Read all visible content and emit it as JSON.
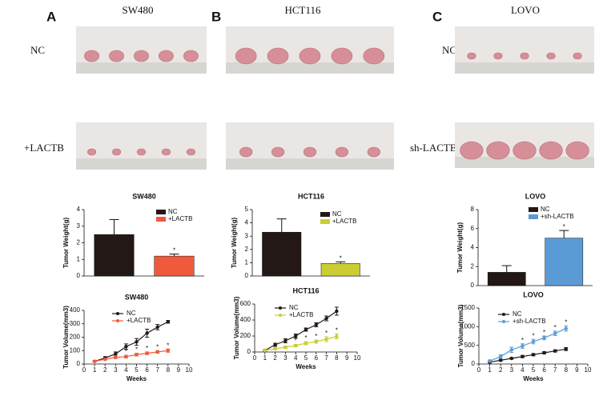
{
  "panels": [
    {
      "letter": "A",
      "title": "SW480",
      "rows": [
        "NC",
        "+LACTB"
      ]
    },
    {
      "letter": "B",
      "title": "HCT116"
    },
    {
      "letter": "C",
      "title": "LOVO",
      "rows": [
        "NC",
        "sh-LACTB"
      ]
    }
  ],
  "chart_data": [
    {
      "type": "bar",
      "title": "SW480",
      "ylabel": "Tumor Weight(g)",
      "ylim": [
        0,
        4
      ],
      "yticks": [
        0,
        1,
        2,
        3,
        4
      ],
      "annotation": "*",
      "series": [
        {
          "name": "NC",
          "color": "#231815",
          "values": [
            2.5
          ],
          "errors": [
            0.9
          ]
        },
        {
          "name": "+LACTB",
          "color": "#ef5a3c",
          "values": [
            1.2
          ],
          "errors": [
            0.12
          ]
        }
      ]
    },
    {
      "type": "bar",
      "title": "HCT116",
      "ylabel": "Tumor Weight(g)",
      "ylim": [
        0,
        5
      ],
      "yticks": [
        0,
        1,
        2,
        3,
        4,
        5
      ],
      "annotation": "*",
      "series": [
        {
          "name": "NC",
          "color": "#231815",
          "values": [
            3.3
          ],
          "errors": [
            1.0
          ]
        },
        {
          "name": "+LACTB",
          "color": "#cccc33",
          "values": [
            0.95
          ],
          "errors": [
            0.12
          ]
        }
      ]
    },
    {
      "type": "bar",
      "title": "LOVO",
      "ylabel": "Tumor Weight(g)",
      "ylim": [
        0,
        8
      ],
      "yticks": [
        0,
        2,
        4,
        6,
        8
      ],
      "annotation": "*",
      "series": [
        {
          "name": "NC",
          "color": "#231815",
          "values": [
            1.4
          ],
          "errors": [
            0.7
          ]
        },
        {
          "name": "+sh-LACTB",
          "color": "#5b9bd5",
          "values": [
            5.0
          ],
          "errors": [
            0.8
          ]
        }
      ]
    },
    {
      "type": "line",
      "title": "SW480",
      "ylabel": "Tumor Volume(mm3)",
      "xlabel": "Weeks",
      "annotation": "*",
      "xlim": [
        0,
        10
      ],
      "xticks": [
        0,
        1,
        2,
        3,
        4,
        5,
        6,
        7,
        8,
        9,
        10
      ],
      "ylim": [
        0,
        400
      ],
      "yticks": [
        0,
        100,
        200,
        300,
        400
      ],
      "x": [
        1,
        2,
        3,
        4,
        5,
        6,
        7,
        8
      ],
      "series": [
        {
          "name": "NC",
          "color": "#231815",
          "values": [
            20,
            45,
            75,
            130,
            165,
            230,
            275,
            315
          ],
          "errors": [
            5,
            10,
            15,
            20,
            25,
            30,
            20,
            10
          ]
        },
        {
          "name": "+LACTB",
          "color": "#ef5a3c",
          "values": [
            20,
            35,
            50,
            55,
            70,
            80,
            90,
            100
          ],
          "errors": [
            5,
            5,
            10,
            10,
            10,
            10,
            10,
            12
          ]
        }
      ]
    },
    {
      "type": "line",
      "title": "HCT116",
      "ylabel": "Tumor Volume(mm3)",
      "xlabel": "Weeks",
      "annotation": "*",
      "xlim": [
        0,
        10
      ],
      "xticks": [
        0,
        1,
        2,
        3,
        4,
        5,
        6,
        7,
        8,
        9,
        10
      ],
      "ylim": [
        0,
        600
      ],
      "yticks": [
        0,
        200,
        400,
        600
      ],
      "x": [
        1,
        2,
        3,
        4,
        5,
        6,
        7,
        8
      ],
      "series": [
        {
          "name": "NC",
          "color": "#231815",
          "values": [
            20,
            90,
            140,
            200,
            280,
            340,
            420,
            510
          ],
          "errors": [
            10,
            20,
            25,
            25,
            20,
            25,
            30,
            50
          ]
        },
        {
          "name": "+LACTB",
          "color": "#cccc33",
          "values": [
            20,
            40,
            60,
            80,
            110,
            130,
            160,
            195
          ],
          "errors": [
            5,
            10,
            15,
            15,
            20,
            20,
            30,
            30
          ]
        }
      ]
    },
    {
      "type": "line",
      "title": "LOVO",
      "ylabel": "Tumor Volume(mm3)",
      "xlabel": "Weeks",
      "annotation": "*",
      "xlim": [
        0,
        10
      ],
      "xticks": [
        0,
        1,
        2,
        3,
        4,
        5,
        6,
        7,
        8,
        9,
        10
      ],
      "ylim": [
        0,
        1500
      ],
      "yticks": [
        0,
        500,
        1000,
        1500
      ],
      "x": [
        1,
        2,
        3,
        4,
        5,
        6,
        7,
        8
      ],
      "series": [
        {
          "name": "NC",
          "color": "#231815",
          "values": [
            50,
            100,
            150,
            200,
            250,
            300,
            350,
            400
          ],
          "errors": [
            20,
            20,
            20,
            30,
            30,
            30,
            30,
            40
          ]
        },
        {
          "name": "+sh-LACTB",
          "color": "#5b9bd5",
          "values": [
            80,
            200,
            380,
            480,
            600,
            700,
            820,
            950
          ],
          "errors": [
            30,
            50,
            70,
            60,
            60,
            50,
            60,
            70
          ]
        }
      ]
    }
  ]
}
